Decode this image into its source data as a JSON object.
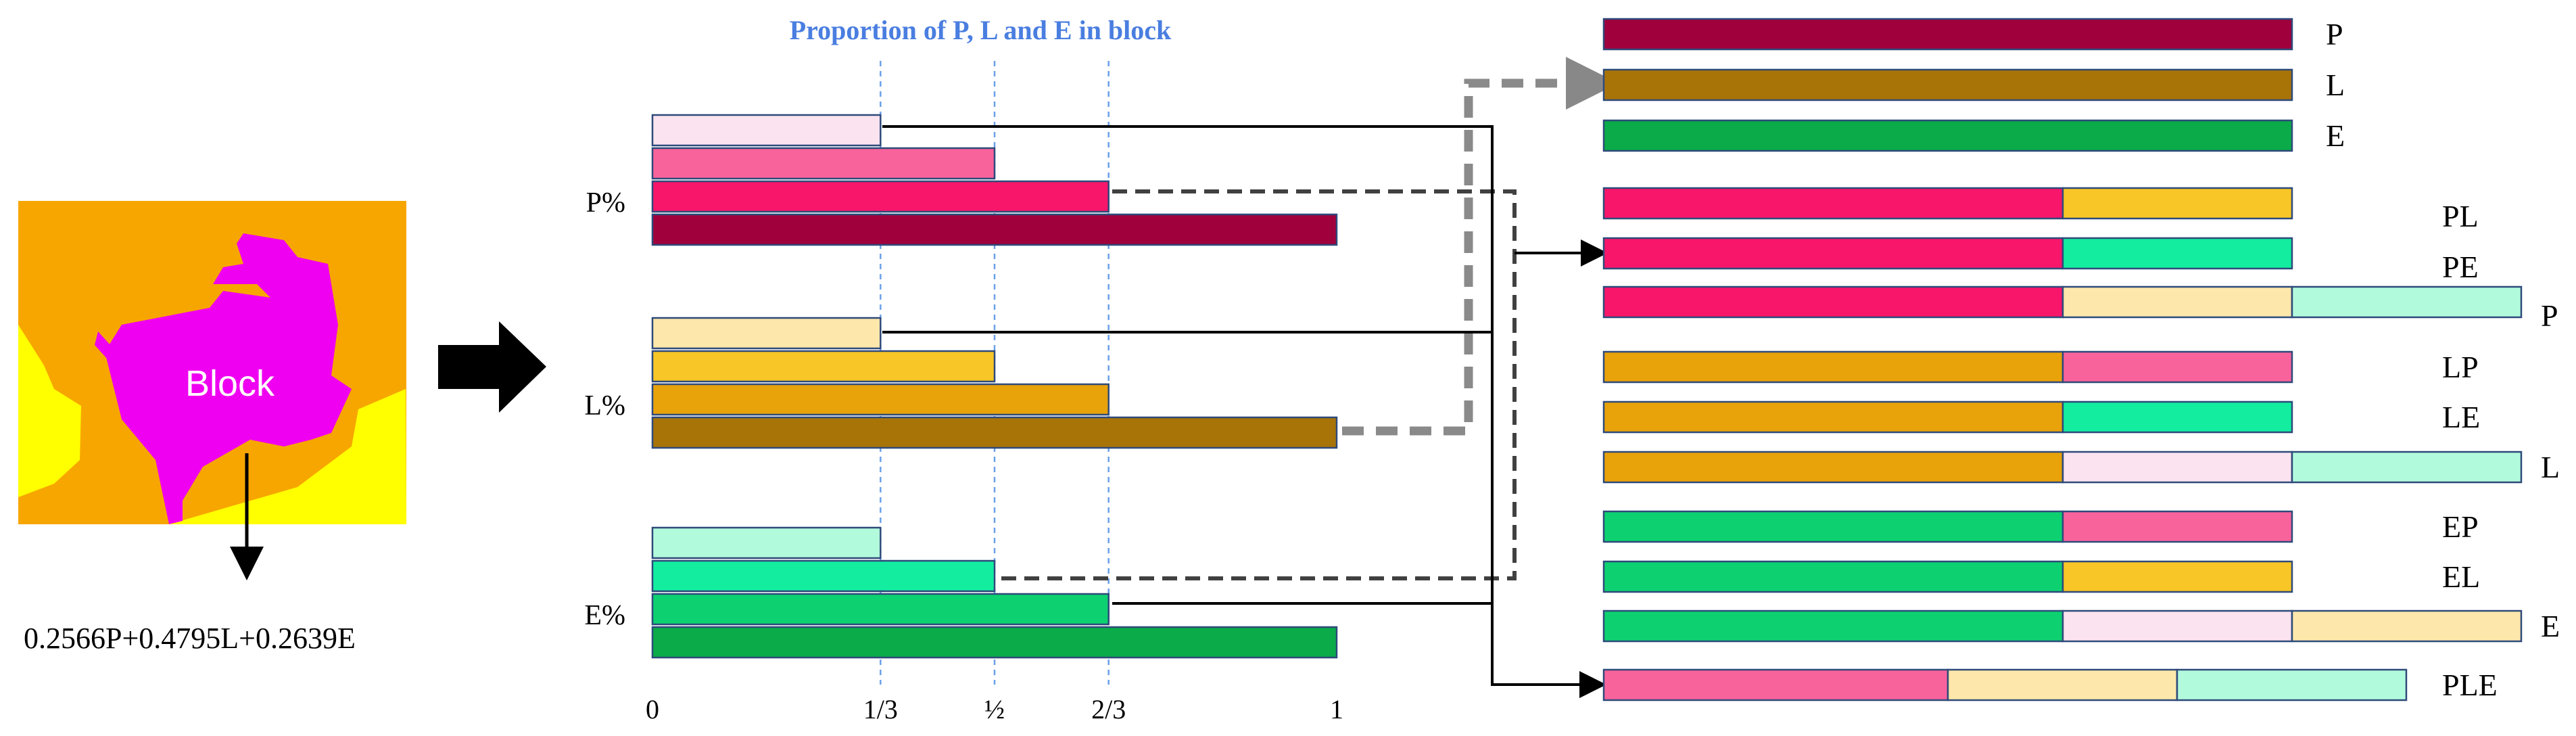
{
  "title": "Proportion of P, L and E in block",
  "block": {
    "label": "Block",
    "formula": "0.2566P+0.4795L+0.2639E"
  },
  "colors": {
    "P": [
      "#fbe3ef",
      "#f9639b",
      "#f7166a",
      "#a0003c"
    ],
    "L": [
      "#fde7aa",
      "#f8c626",
      "#e8a20a",
      "#a87408"
    ],
    "E": [
      "#b2fadc",
      "#13eda0",
      "#0dd170",
      "#0aab48"
    ]
  },
  "chart_data": {
    "type": "bar",
    "orientation": "horizontal",
    "categories": [
      "P%",
      "L%",
      "E%"
    ],
    "x_ticks": [
      "0",
      "1/3",
      "½",
      "2/3",
      "1"
    ],
    "x_tick_values": [
      0,
      0.3333,
      0.5,
      0.6667,
      1
    ],
    "xlim": [
      0,
      1
    ],
    "bar_levels": [
      0.3333,
      0.5,
      0.6667,
      1
    ],
    "grid": "vertical dashed at 1/3, ½, 2/3"
  },
  "combinations": [
    {
      "label": "P",
      "segments": [
        "P"
      ]
    },
    {
      "label": "L",
      "segments": [
        "L"
      ]
    },
    {
      "label": "E",
      "segments": [
        "E"
      ]
    },
    {
      "label": "PL",
      "segments": [
        "P",
        "L"
      ]
    },
    {
      "label": "PE",
      "segments": [
        "P",
        "E"
      ]
    },
    {
      "label": "P",
      "segments": [
        "P",
        "L",
        "E"
      ]
    },
    {
      "label": "LP",
      "segments": [
        "L",
        "P"
      ]
    },
    {
      "label": "LE",
      "segments": [
        "L",
        "E"
      ]
    },
    {
      "label": "L",
      "segments": [
        "L",
        "P",
        "E"
      ]
    },
    {
      "label": "EP",
      "segments": [
        "E",
        "P"
      ]
    },
    {
      "label": "EL",
      "segments": [
        "E",
        "L"
      ]
    },
    {
      "label": "E",
      "segments": [
        "E",
        "P",
        "L"
      ]
    },
    {
      "label": "PLE",
      "segments": [
        "P",
        "L",
        "E"
      ]
    }
  ]
}
